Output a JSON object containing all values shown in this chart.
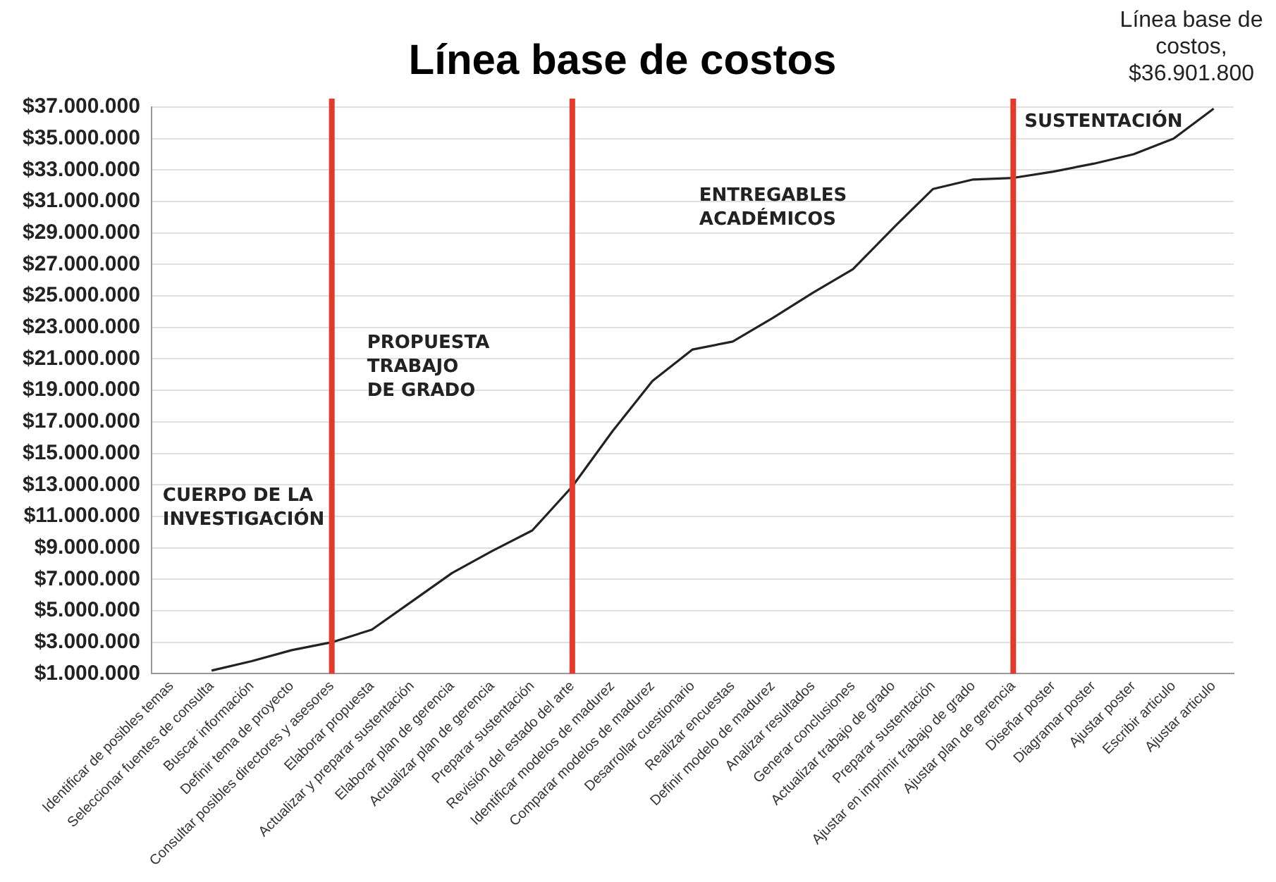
{
  "chart_data": {
    "type": "line",
    "title": "Línea base de costos",
    "categories": [
      "Identificar de posibles temas",
      "Seleccionar fuentes de consulta",
      "Buscar información",
      "Definir tema de proyecto",
      "Consultar posibles directores y asesores",
      "Elaborar propuesta",
      "Actualizar y preparar sustentación",
      "Elaborar plan de gerencia",
      "Actualizar plan de gerencia",
      "Preparar sustentación",
      "Revisión del estado del arte",
      "Identificar modelos de madurez",
      "Comparar modelos de madurez",
      "Desarrollar cuestionario",
      "Realizar encuestas",
      "Definir modelo de madurez",
      "Analizar resultados",
      "Generar conclusiones",
      "Actualizar trabajo de grado",
      "Preparar sustentación",
      "Ajustar en imprimir trabajo de grado",
      "Ajustar plan de gerencia",
      "Diseñar poster",
      "Diagramar poster",
      "Ajustar poster",
      "Escribir articulo",
      "Ajustar articulo"
    ],
    "series": [
      {
        "color": "#222222",
        "values": [
          null,
          1200000,
          1800000,
          2500000,
          3000000,
          3800000,
          5600000,
          7400000,
          8800000,
          10100000,
          12900000,
          16400000,
          19600000,
          21600000,
          22100000,
          23600000,
          25200000,
          26700000,
          29300000,
          31800000,
          32400000,
          32500000,
          32900000,
          33400000,
          34000000,
          35000000,
          36901800
        ]
      }
    ],
    "ylim": [
      1000000,
      37000000
    ],
    "yticks": [
      {
        "value": 1000000,
        "label": "$1.000.000"
      },
      {
        "value": 3000000,
        "label": "$3.000.000"
      },
      {
        "value": 5000000,
        "label": "$5.000.000"
      },
      {
        "value": 7000000,
        "label": "$7.000.000"
      },
      {
        "value": 9000000,
        "label": "$9.000.000"
      },
      {
        "value": 11000000,
        "label": "$11.000.000"
      },
      {
        "value": 13000000,
        "label": "$13.000.000"
      },
      {
        "value": 15000000,
        "label": "$15.000.000"
      },
      {
        "value": 17000000,
        "label": "$17.000.000"
      },
      {
        "value": 19000000,
        "label": "$19.000.000"
      },
      {
        "value": 21000000,
        "label": "$21.000.000"
      },
      {
        "value": 23000000,
        "label": "$23.000.000"
      },
      {
        "value": 25000000,
        "label": "$25.000.000"
      },
      {
        "value": 27000000,
        "label": "$27.000.000"
      },
      {
        "value": 29000000,
        "label": "$29.000.000"
      },
      {
        "value": 31000000,
        "label": "$31.000.000"
      },
      {
        "value": 33000000,
        "label": "$33.000.000"
      },
      {
        "value": 35000000,
        "label": "$35.000.000"
      },
      {
        "value": 37000000,
        "label": "$37.000.000"
      }
    ],
    "grid": "y",
    "marker": "none",
    "line_style": "solid",
    "legend": false,
    "ref_lines": [
      {
        "axis": "x",
        "value": "Consultar posibles directores y asesores",
        "color": "#e53a2a"
      },
      {
        "axis": "x",
        "value": "Revisión del estado del arte",
        "color": "#e53a2a"
      },
      {
        "axis": "x",
        "value": "Ajustar plan de gerencia",
        "color": "#e53a2a"
      }
    ],
    "annotations": [
      "CUERPO DE LA\nINVESTIGACIÓN",
      "PROPUESTA\nTRABAJO\nDE GRADO",
      "ENTREGABLES\nACADÉMICOS",
      "SUSTENTACIÓN",
      {
        "text": "Línea base de\ncostos,\n$36.901.800",
        "x": "Ajustar articulo",
        "y": 36901800
      }
    ]
  }
}
